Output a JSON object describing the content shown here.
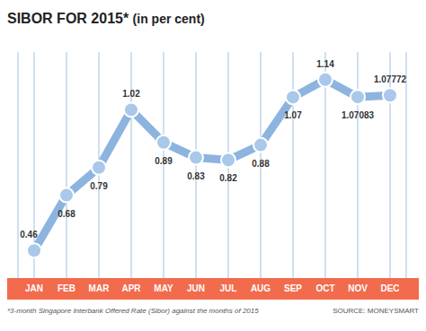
{
  "chart_data": {
    "type": "line",
    "title": "SIBOR FOR 2015*",
    "subtitle": "(in per cent)",
    "categories": [
      "JAN",
      "FEB",
      "MAR",
      "APR",
      "MAY",
      "JUN",
      "JUL",
      "AUG",
      "SEP",
      "OCT",
      "NOV",
      "DEC"
    ],
    "values": [
      0.46,
      0.68,
      0.79,
      1.02,
      0.89,
      0.83,
      0.82,
      0.88,
      1.07,
      1.14,
      1.07083,
      1.07772
    ],
    "color": "#8db4df",
    "marker": "circle",
    "data_labels": true,
    "grid": true,
    "tick_labels": "x",
    "ylim": [
      0.35,
      1.25
    ],
    "annotations": [
      "*3-month Singapore Interbank Offered Rate (Sibor) against the months of 2015",
      "SOURCE: MONEYSMART"
    ]
  }
}
